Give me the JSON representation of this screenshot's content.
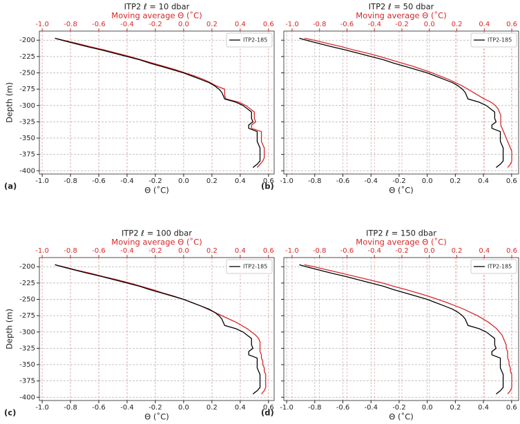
{
  "chart_data": [
    {
      "type": "line",
      "title": "ITP2 ℓ = 10 dbar",
      "x2label": "Moving average Θ (˚C)",
      "xlabel": "Θ (˚C)",
      "ylabel": "Depth (m)",
      "label": "(a)",
      "xlim": [
        -1.02,
        0.64
      ],
      "x2lim": [
        -1.02,
        0.64
      ],
      "ylim": [
        -405,
        -186
      ],
      "xticks": [
        {
          "value": -1.0,
          "label": "-1.0"
        },
        -0.8,
        -0.6,
        -0.4,
        -0.2,
        {
          "value": 0.0,
          "label": "0.0"
        },
        0.2,
        0.4,
        0.6
      ],
      "x2ticks": [
        {
          "value": -1.0,
          "label": "-1.0"
        },
        -0.8,
        -0.6,
        -0.4,
        -0.2,
        {
          "value": 0.0,
          "label": "0.0"
        },
        0.2,
        0.4,
        0.6
      ],
      "yticks": [
        -200,
        -225,
        -250,
        -275,
        -300,
        -325,
        -350,
        -375,
        -400
      ],
      "grid": true,
      "legend": "upper right",
      "y": [
        -197,
        -200,
        -205,
        -210,
        -215,
        -220,
        -225,
        -230,
        -235,
        -240,
        -245,
        -250,
        -255,
        -260,
        -265,
        -270,
        -275,
        -280,
        -285,
        -290,
        -295,
        -300,
        -305,
        -310,
        -315,
        -320,
        -325,
        -330,
        -335,
        -340,
        -345,
        -350,
        -355,
        -360,
        -365,
        -370,
        -375,
        -380,
        -385,
        -390,
        -395
      ],
      "series": [
        {
          "name": "ITP2-185",
          "color": "#000000",
          "values": [
            -0.91,
            -0.86,
            -0.77,
            -0.68,
            -0.58,
            -0.49,
            -0.4,
            -0.31,
            -0.24,
            -0.16,
            -0.08,
            0.0,
            0.06,
            0.12,
            0.18,
            0.22,
            0.25,
            0.27,
            0.28,
            0.29,
            0.37,
            0.42,
            0.45,
            0.48,
            0.48,
            0.48,
            0.49,
            0.46,
            0.46,
            0.52,
            0.52,
            0.52,
            0.52,
            0.53,
            0.54,
            0.54,
            0.54,
            0.54,
            0.54,
            0.52,
            0.49
          ]
        },
        {
          "color": "#d62728",
          "axis": "x2",
          "values": [
            -0.91,
            -0.85,
            -0.75,
            -0.66,
            -0.56,
            -0.47,
            -0.38,
            -0.3,
            -0.22,
            -0.14,
            -0.06,
            0.01,
            0.08,
            0.14,
            0.19,
            0.23,
            0.29,
            0.29,
            0.29,
            0.3,
            0.39,
            0.44,
            0.47,
            0.5,
            0.5,
            0.5,
            0.51,
            0.48,
            0.48,
            0.55,
            0.55,
            0.55,
            0.55,
            0.56,
            0.57,
            0.57,
            0.57,
            0.57,
            0.56,
            0.54,
            0.52
          ]
        }
      ]
    },
    {
      "type": "line",
      "title": "ITP2 ℓ = 50 dbar",
      "x2label": "Moving average Θ (˚C)",
      "xlabel": "Θ (˚C)",
      "label": "(b)",
      "xlim": [
        -1.02,
        0.65
      ],
      "x2lim": [
        -1.06,
        0.65
      ],
      "ylim": [
        -405,
        -186
      ],
      "xticks": [
        {
          "value": -1.0,
          "label": "-1.0"
        },
        -0.8,
        -0.6,
        -0.4,
        -0.2,
        {
          "value": 0.0,
          "label": "0.0"
        },
        0.2,
        0.4,
        0.6
      ],
      "x2ticks": [
        {
          "value": -1.0,
          "label": "-1.0"
        },
        -0.8,
        -0.6,
        -0.4,
        -0.2,
        {
          "value": 0.0,
          "label": "0.0"
        },
        0.2,
        0.4,
        0.6
      ],
      "yticks": [
        -200,
        -225,
        -250,
        -275,
        -300,
        -325,
        -350,
        -375,
        -400
      ],
      "grid": true,
      "legend": "upper right",
      "y": [
        -197,
        -200,
        -205,
        -210,
        -215,
        -220,
        -225,
        -230,
        -235,
        -240,
        -245,
        -250,
        -255,
        -260,
        -265,
        -270,
        -275,
        -280,
        -285,
        -290,
        -295,
        -300,
        -305,
        -310,
        -315,
        -320,
        -325,
        -330,
        -335,
        -340,
        -345,
        -350,
        -355,
        -360,
        -365,
        -370,
        -375,
        -380,
        -385,
        -390,
        -395
      ],
      "series": [
        {
          "name": "ITP2-185",
          "color": "#000000",
          "values": [
            -0.91,
            -0.86,
            -0.77,
            -0.68,
            -0.58,
            -0.49,
            -0.4,
            -0.31,
            -0.24,
            -0.16,
            -0.08,
            0.0,
            0.06,
            0.12,
            0.18,
            0.22,
            0.25,
            0.27,
            0.28,
            0.29,
            0.37,
            0.42,
            0.45,
            0.48,
            0.48,
            0.48,
            0.49,
            0.46,
            0.46,
            0.52,
            0.52,
            0.52,
            0.52,
            0.53,
            0.54,
            0.54,
            0.54,
            0.54,
            0.54,
            0.52,
            0.49
          ]
        },
        {
          "color": "#d62728",
          "axis": "x2",
          "values": [
            -0.91,
            -0.84,
            -0.74,
            -0.64,
            -0.55,
            -0.45,
            -0.36,
            -0.28,
            -0.2,
            -0.12,
            -0.05,
            0.02,
            0.08,
            0.14,
            0.19,
            0.24,
            0.28,
            0.32,
            0.36,
            0.4,
            0.45,
            0.48,
            0.5,
            0.51,
            0.52,
            0.52,
            0.52,
            0.52,
            0.53,
            0.54,
            0.55,
            0.56,
            0.57,
            0.58,
            0.59,
            0.6,
            0.6,
            0.6,
            0.6,
            0.59,
            0.57
          ]
        }
      ]
    },
    {
      "type": "line",
      "title": "ITP2 ℓ = 100 dbar",
      "x2label": "Moving average Θ (˚C)",
      "xlabel": "Θ (˚C)",
      "ylabel": "Depth (m)",
      "label": "(c)",
      "xlim": [
        -1.02,
        0.64
      ],
      "x2lim": [
        -1.02,
        0.64
      ],
      "ylim": [
        -405,
        -186
      ],
      "xticks": [
        {
          "value": -1.0,
          "label": "-1.0"
        },
        -0.8,
        -0.6,
        -0.4,
        -0.2,
        {
          "value": 0.0,
          "label": "0.0"
        },
        0.2,
        0.4,
        0.6
      ],
      "x2ticks": [
        {
          "value": -1.0,
          "label": "-1.0"
        },
        -0.8,
        -0.6,
        -0.4,
        -0.2,
        {
          "value": 0.0,
          "label": "0.0"
        },
        0.2,
        0.4,
        0.6
      ],
      "yticks": [
        -200,
        -225,
        -250,
        -275,
        -300,
        -325,
        -350,
        -375,
        -400
      ],
      "grid": true,
      "legend": "upper right",
      "y": [
        -197,
        -200,
        -205,
        -210,
        -215,
        -220,
        -225,
        -230,
        -235,
        -240,
        -245,
        -250,
        -255,
        -260,
        -265,
        -270,
        -275,
        -280,
        -285,
        -290,
        -295,
        -300,
        -305,
        -310,
        -315,
        -320,
        -325,
        -330,
        -335,
        -340,
        -345,
        -350,
        -355,
        -360,
        -365,
        -370,
        -375,
        -380,
        -385,
        -390,
        -395
      ],
      "series": [
        {
          "name": "ITP2-185",
          "color": "#000000",
          "values": [
            -0.91,
            -0.86,
            -0.77,
            -0.68,
            -0.58,
            -0.49,
            -0.4,
            -0.31,
            -0.24,
            -0.16,
            -0.08,
            0.0,
            0.06,
            0.12,
            0.18,
            0.22,
            0.25,
            0.27,
            0.28,
            0.29,
            0.37,
            0.42,
            0.45,
            0.48,
            0.48,
            0.48,
            0.49,
            0.46,
            0.46,
            0.52,
            0.52,
            0.52,
            0.52,
            0.53,
            0.54,
            0.54,
            0.54,
            0.54,
            0.54,
            0.52,
            0.49
          ]
        },
        {
          "color": "#d62728",
          "axis": "x2",
          "values": [
            -0.91,
            -0.85,
            -0.76,
            -0.66,
            -0.57,
            -0.47,
            -0.38,
            -0.3,
            -0.22,
            -0.15,
            -0.07,
            0.0,
            0.06,
            0.12,
            0.17,
            0.22,
            0.27,
            0.32,
            0.37,
            0.41,
            0.45,
            0.48,
            0.51,
            0.53,
            0.54,
            0.54,
            0.54,
            0.54,
            0.55,
            0.55,
            0.56,
            0.56,
            0.57,
            0.57,
            0.58,
            0.58,
            0.58,
            0.58,
            0.58,
            0.57,
            0.55
          ]
        }
      ]
    },
    {
      "type": "line",
      "title": "ITP2 ℓ = 150 dbar",
      "x2label": "Moving average Θ (˚C)",
      "xlabel": "Θ (˚C)",
      "label": "(d)",
      "xlim": [
        -1.02,
        0.65
      ],
      "x2lim": [
        -1.06,
        0.65
      ],
      "ylim": [
        -405,
        -186
      ],
      "xticks": [
        {
          "value": -1.0,
          "label": "-1.0"
        },
        -0.8,
        -0.6,
        -0.4,
        -0.2,
        {
          "value": 0.0,
          "label": "0.0"
        },
        0.2,
        0.4,
        0.6
      ],
      "x2ticks": [
        {
          "value": -1.0,
          "label": "-1.0"
        },
        -0.8,
        -0.6,
        -0.4,
        -0.2,
        {
          "value": 0.0,
          "label": "0.0"
        },
        0.2,
        0.4,
        0.6
      ],
      "yticks": [
        -200,
        -225,
        -250,
        -275,
        -300,
        -325,
        -350,
        -375,
        -400
      ],
      "grid": true,
      "legend": "upper right",
      "y": [
        -197,
        -200,
        -205,
        -210,
        -215,
        -220,
        -225,
        -230,
        -235,
        -240,
        -245,
        -250,
        -255,
        -260,
        -265,
        -270,
        -275,
        -280,
        -285,
        -290,
        -295,
        -300,
        -305,
        -310,
        -315,
        -320,
        -325,
        -330,
        -335,
        -340,
        -345,
        -350,
        -355,
        -360,
        -365,
        -370,
        -375,
        -380,
        -385,
        -390,
        -395
      ],
      "series": [
        {
          "name": "ITP2-185",
          "color": "#000000",
          "values": [
            -0.91,
            -0.86,
            -0.77,
            -0.68,
            -0.58,
            -0.49,
            -0.4,
            -0.31,
            -0.24,
            -0.16,
            -0.08,
            0.0,
            0.06,
            0.12,
            0.18,
            0.22,
            0.25,
            0.27,
            0.28,
            0.29,
            0.37,
            0.42,
            0.45,
            0.48,
            0.48,
            0.48,
            0.49,
            0.46,
            0.46,
            0.52,
            0.52,
            0.52,
            0.52,
            0.53,
            0.54,
            0.54,
            0.54,
            0.54,
            0.54,
            0.52,
            0.49
          ]
        },
        {
          "color": "#d62728",
          "axis": "x2",
          "values": [
            -0.91,
            -0.84,
            -0.74,
            -0.64,
            -0.54,
            -0.44,
            -0.34,
            -0.26,
            -0.17,
            -0.09,
            -0.01,
            0.06,
            0.13,
            0.19,
            0.25,
            0.3,
            0.35,
            0.39,
            0.43,
            0.46,
            0.49,
            0.51,
            0.53,
            0.54,
            0.55,
            0.56,
            0.56,
            0.57,
            0.57,
            0.57,
            0.58,
            0.58,
            0.59,
            0.59,
            0.6,
            0.6,
            0.6,
            0.6,
            0.6,
            0.59,
            0.57
          ]
        }
      ]
    }
  ]
}
